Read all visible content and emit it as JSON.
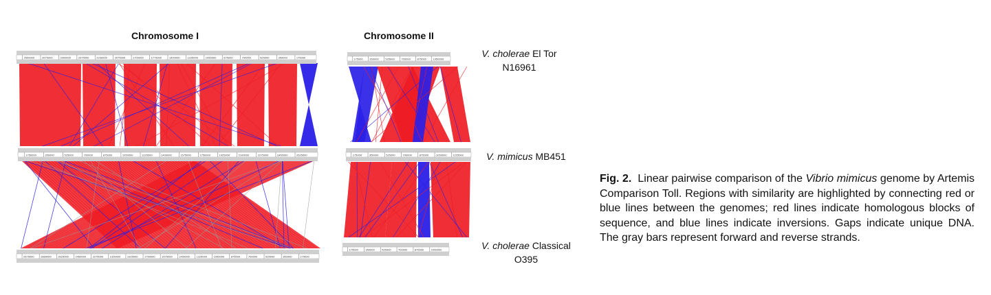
{
  "panels": {
    "chr1_title": "Chromosome I",
    "chr2_title": "Chromosome II"
  },
  "genomes": {
    "eltor": {
      "species": "V. cholerae",
      "strain": "El Tor",
      "id": "N16961"
    },
    "mimicus": {
      "species": "V. mimicus",
      "strain": "MB451"
    },
    "classical": {
      "species": "V. cholerae",
      "strain": "Classical",
      "id": "O395"
    }
  },
  "caption": {
    "fig_label": "Fig. 2.",
    "text_1": "Linear pairwise comparison of the",
    "italic_name": "Vibrio mimicus",
    "text_2": "genome by Artemis Comparison Toll. Regions with similarity are highlighted by connecting red or blue lines between the genomes; red lines indicate homologous blocks of sequence, and blue lines indicate inversions. Gaps indicate unique DNA. The gray bars represent forward and reverse strands."
  },
  "colors": {
    "homologous": "#ee1c24",
    "inversion": "#2a1fe6",
    "strand_bar": "#cfcfcf",
    "ruler": "#ffffff"
  },
  "rulers": {
    "chr1_top": [
      "2590000",
      "2675000",
      "2900000",
      "2375000",
      "2230000",
      "2075000",
      "1700000",
      "1775000",
      "1400000",
      "1225000",
      "1050000",
      "875000",
      "700000",
      "525000",
      "350000",
      "175000"
    ],
    "chr1_mid": [
      "1750000",
      "350000",
      "525000",
      "700000",
      "875000",
      "1050000",
      "1225000",
      "1400000",
      "1575000",
      "1750000",
      "1925000",
      "2100000",
      "2275000",
      "2450000",
      "2625000"
    ],
    "chr1_bot": [
      "2675000",
      "2860000",
      "2625000",
      "2450000",
      "2275000",
      "2100000",
      "1925000",
      "1750000",
      "1575000",
      "1400000",
      "1225000",
      "1050000",
      "875000",
      "700000",
      "525000",
      "350000",
      "175000"
    ],
    "chr2_top": [
      "175000",
      "350000",
      "525000",
      "700000",
      "875000",
      "1050000"
    ],
    "chr2_mid": [
      "175000",
      "350000",
      "525000",
      "700000",
      "875000",
      "1050000",
      "1225000"
    ],
    "chr2_bot": [
      "175000",
      "350000",
      "525000",
      "700000",
      "875000",
      "1050000"
    ]
  }
}
